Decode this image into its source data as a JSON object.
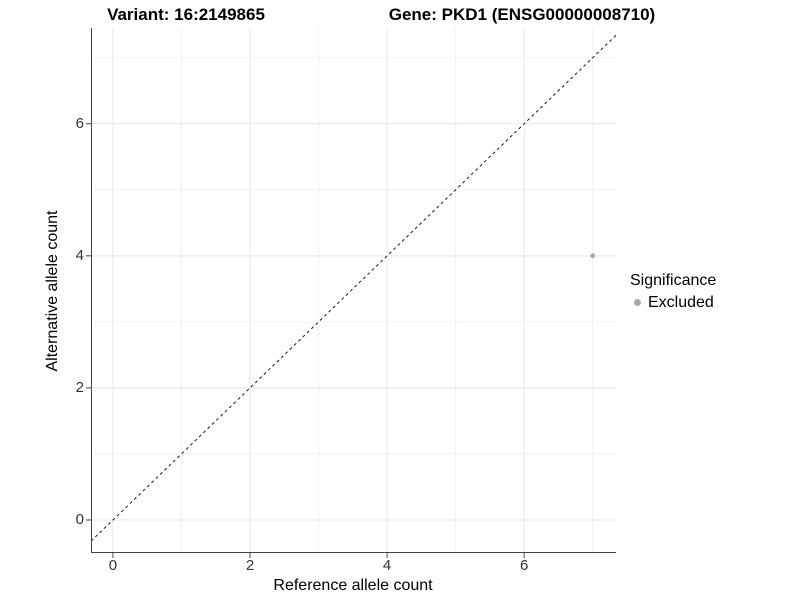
{
  "chart_data": {
    "type": "scatter",
    "titles": {
      "left": "Variant: 16:2149865",
      "right": "Gene: PKD1 (ENSG00000008710)"
    },
    "xlabel": "Reference allele count",
    "ylabel": "Alternative allele count",
    "xlim": [
      -0.32,
      7.34
    ],
    "ylim": [
      -0.5,
      7.45
    ],
    "x_ticks": [
      0,
      2,
      4,
      6
    ],
    "y_ticks": [
      0,
      2,
      4,
      6
    ],
    "x_minor_ticks": [
      1,
      3,
      5,
      7
    ],
    "y_minor_ticks": [
      1,
      3,
      5,
      7
    ],
    "grid": true,
    "identity_line": {
      "slope": 1,
      "intercept": 0,
      "style": "dashed",
      "color": "#1a1a1a"
    },
    "series": [
      {
        "name": "Excluded",
        "color": "#a8a8a8",
        "points": [
          {
            "x": 7,
            "y": 4
          }
        ]
      }
    ],
    "legend": {
      "title": "Significance",
      "position": "right",
      "items": [
        {
          "label": "Excluded",
          "color": "#a8a8a8"
        }
      ]
    },
    "colors": {
      "grid_major": "#e7e7e7",
      "grid_minor": "#f2f2f2",
      "axis_line": "#444444",
      "tick_label": "#333333",
      "point": "#a8a8a8"
    }
  }
}
